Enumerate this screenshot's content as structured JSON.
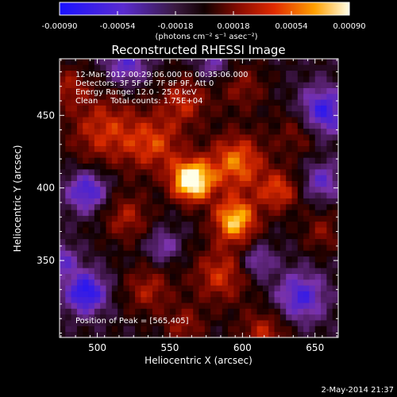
{
  "chart_data": {
    "type": "heatmap",
    "title": "Reconstructed RHESSI Image",
    "xlabel": "Heliocentric X (arcsec)",
    "ylabel": "Heliocentric Y (arcsec)",
    "xlim": [
      474,
      666
    ],
    "ylim": [
      297,
      489
    ],
    "x_ticks": [
      500,
      550,
      600,
      650
    ],
    "y_ticks": [
      350,
      400,
      450
    ],
    "colorbar": {
      "min": -0.0009,
      "max": 0.0009,
      "ticks": [
        "-0.00090",
        "-0.00054",
        "-0.00018",
        "0.00018",
        "0.00054",
        "0.00090"
      ],
      "unit_label": "(photons cm⁻² s⁻¹ asec⁻²)"
    },
    "annotations": [
      "12-Mar-2012 00:29:06.000 to 00:35:06.000",
      "Detectors: 3F 5F 6F 7F 8F 9F, Att 0",
      "Energy Range: 12.0 - 25.0 keV",
      "Clean     Total counts: 1.75E+04"
    ],
    "peak_label": "Position of Peak = [565,405]",
    "peak": [
      565,
      405
    ],
    "colors": {
      "negative_low": "#1a12ff",
      "negative_mid": "#7a32a8",
      "zero": "#110000",
      "positive_mid": "#d82a00",
      "positive_high": "#ffb400",
      "positive_max": "#ffffe8"
    }
  },
  "footer": {
    "date_stamp": "2-May-2014 21:37"
  }
}
